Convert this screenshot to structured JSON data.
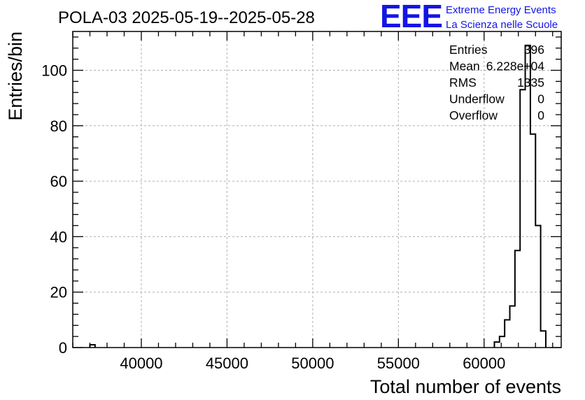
{
  "title": "POLA-03 2025-05-19--2025-05-28",
  "logo": {
    "text": "EEE",
    "line1": "Extreme Energy Events",
    "line2": "La Scienza nelle Scuole",
    "color": "#1414e6"
  },
  "stats": {
    "rows": [
      {
        "label": "Entries",
        "value": "396"
      },
      {
        "label": "Mean",
        "value": "6.228e+04"
      },
      {
        "label": "RMS",
        "value": "1335"
      },
      {
        "label": "Underflow",
        "value": "0"
      },
      {
        "label": "Overflow",
        "value": "0"
      }
    ]
  },
  "chart_data": {
    "type": "histogram",
    "title": "POLA-03 2025-05-19--2025-05-28",
    "xlabel": "Total number of events",
    "ylabel": "Entries/bin",
    "xlim": [
      36000,
      64500
    ],
    "ylim": [
      0,
      114
    ],
    "grid": true,
    "xticks": [
      40000,
      45000,
      50000,
      55000,
      60000
    ],
    "yticks": [
      0,
      20,
      40,
      60,
      80,
      100
    ],
    "bins": [
      {
        "x0": 37000,
        "x1": 37300,
        "y": 1
      },
      {
        "x0": 60600,
        "x1": 60900,
        "y": 2
      },
      {
        "x0": 60900,
        "x1": 61200,
        "y": 4
      },
      {
        "x0": 61200,
        "x1": 61500,
        "y": 10
      },
      {
        "x0": 61500,
        "x1": 61800,
        "y": 15
      },
      {
        "x0": 61800,
        "x1": 62100,
        "y": 35
      },
      {
        "x0": 62100,
        "x1": 62400,
        "y": 93
      },
      {
        "x0": 62400,
        "x1": 62700,
        "y": 109
      },
      {
        "x0": 62700,
        "x1": 63000,
        "y": 77
      },
      {
        "x0": 63000,
        "x1": 63300,
        "y": 44
      },
      {
        "x0": 63300,
        "x1": 63600,
        "y": 6
      }
    ]
  }
}
